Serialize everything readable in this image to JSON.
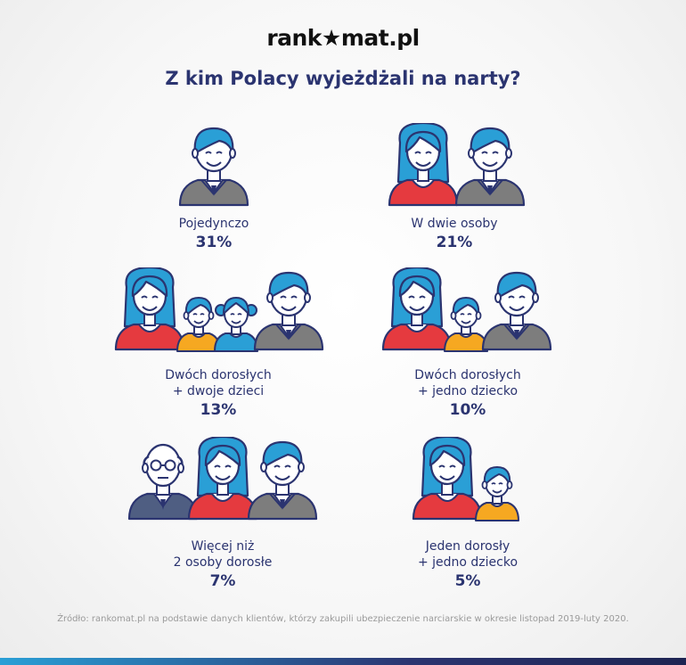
{
  "brand": {
    "logo_text": "rank★mat.pl"
  },
  "title": "Z kim Polacy wyjeżdżali na narty?",
  "items": [
    {
      "label_line1": "Pojedynczo",
      "label_line2": "",
      "percent": "31%"
    },
    {
      "label_line1": "W dwie osoby",
      "label_line2": "",
      "percent": "21%"
    },
    {
      "label_line1": "Dwóch dorosłych",
      "label_line2": "+ dwoje dzieci",
      "percent": "13%"
    },
    {
      "label_line1": "Dwóch dorosłych",
      "label_line2": "+ jedno dziecko",
      "percent": "10%"
    },
    {
      "label_line1": "Więcej niż",
      "label_line2": "2 osoby dorosłe",
      "percent": "7%"
    },
    {
      "label_line1": "Jeden dorosły",
      "label_line2": "+ jedno dziecko",
      "percent": "5%"
    }
  ],
  "footer": "Źródło: rankomat.pl na podstawie danych klientów, którzy zakupili ubezpieczenie narciarskie w okresie listopad 2019-luty 2020.",
  "colors": {
    "navy": "#2b3470",
    "blue": "#2a9fd6",
    "red": "#e53a3f",
    "grey": "#7d7d7d",
    "orange": "#f6a821",
    "skin": "#ffffff"
  },
  "icons": [
    "man-icon",
    "woman-icon",
    "boy-icon",
    "girl-icon",
    "grandpa-icon"
  ]
}
